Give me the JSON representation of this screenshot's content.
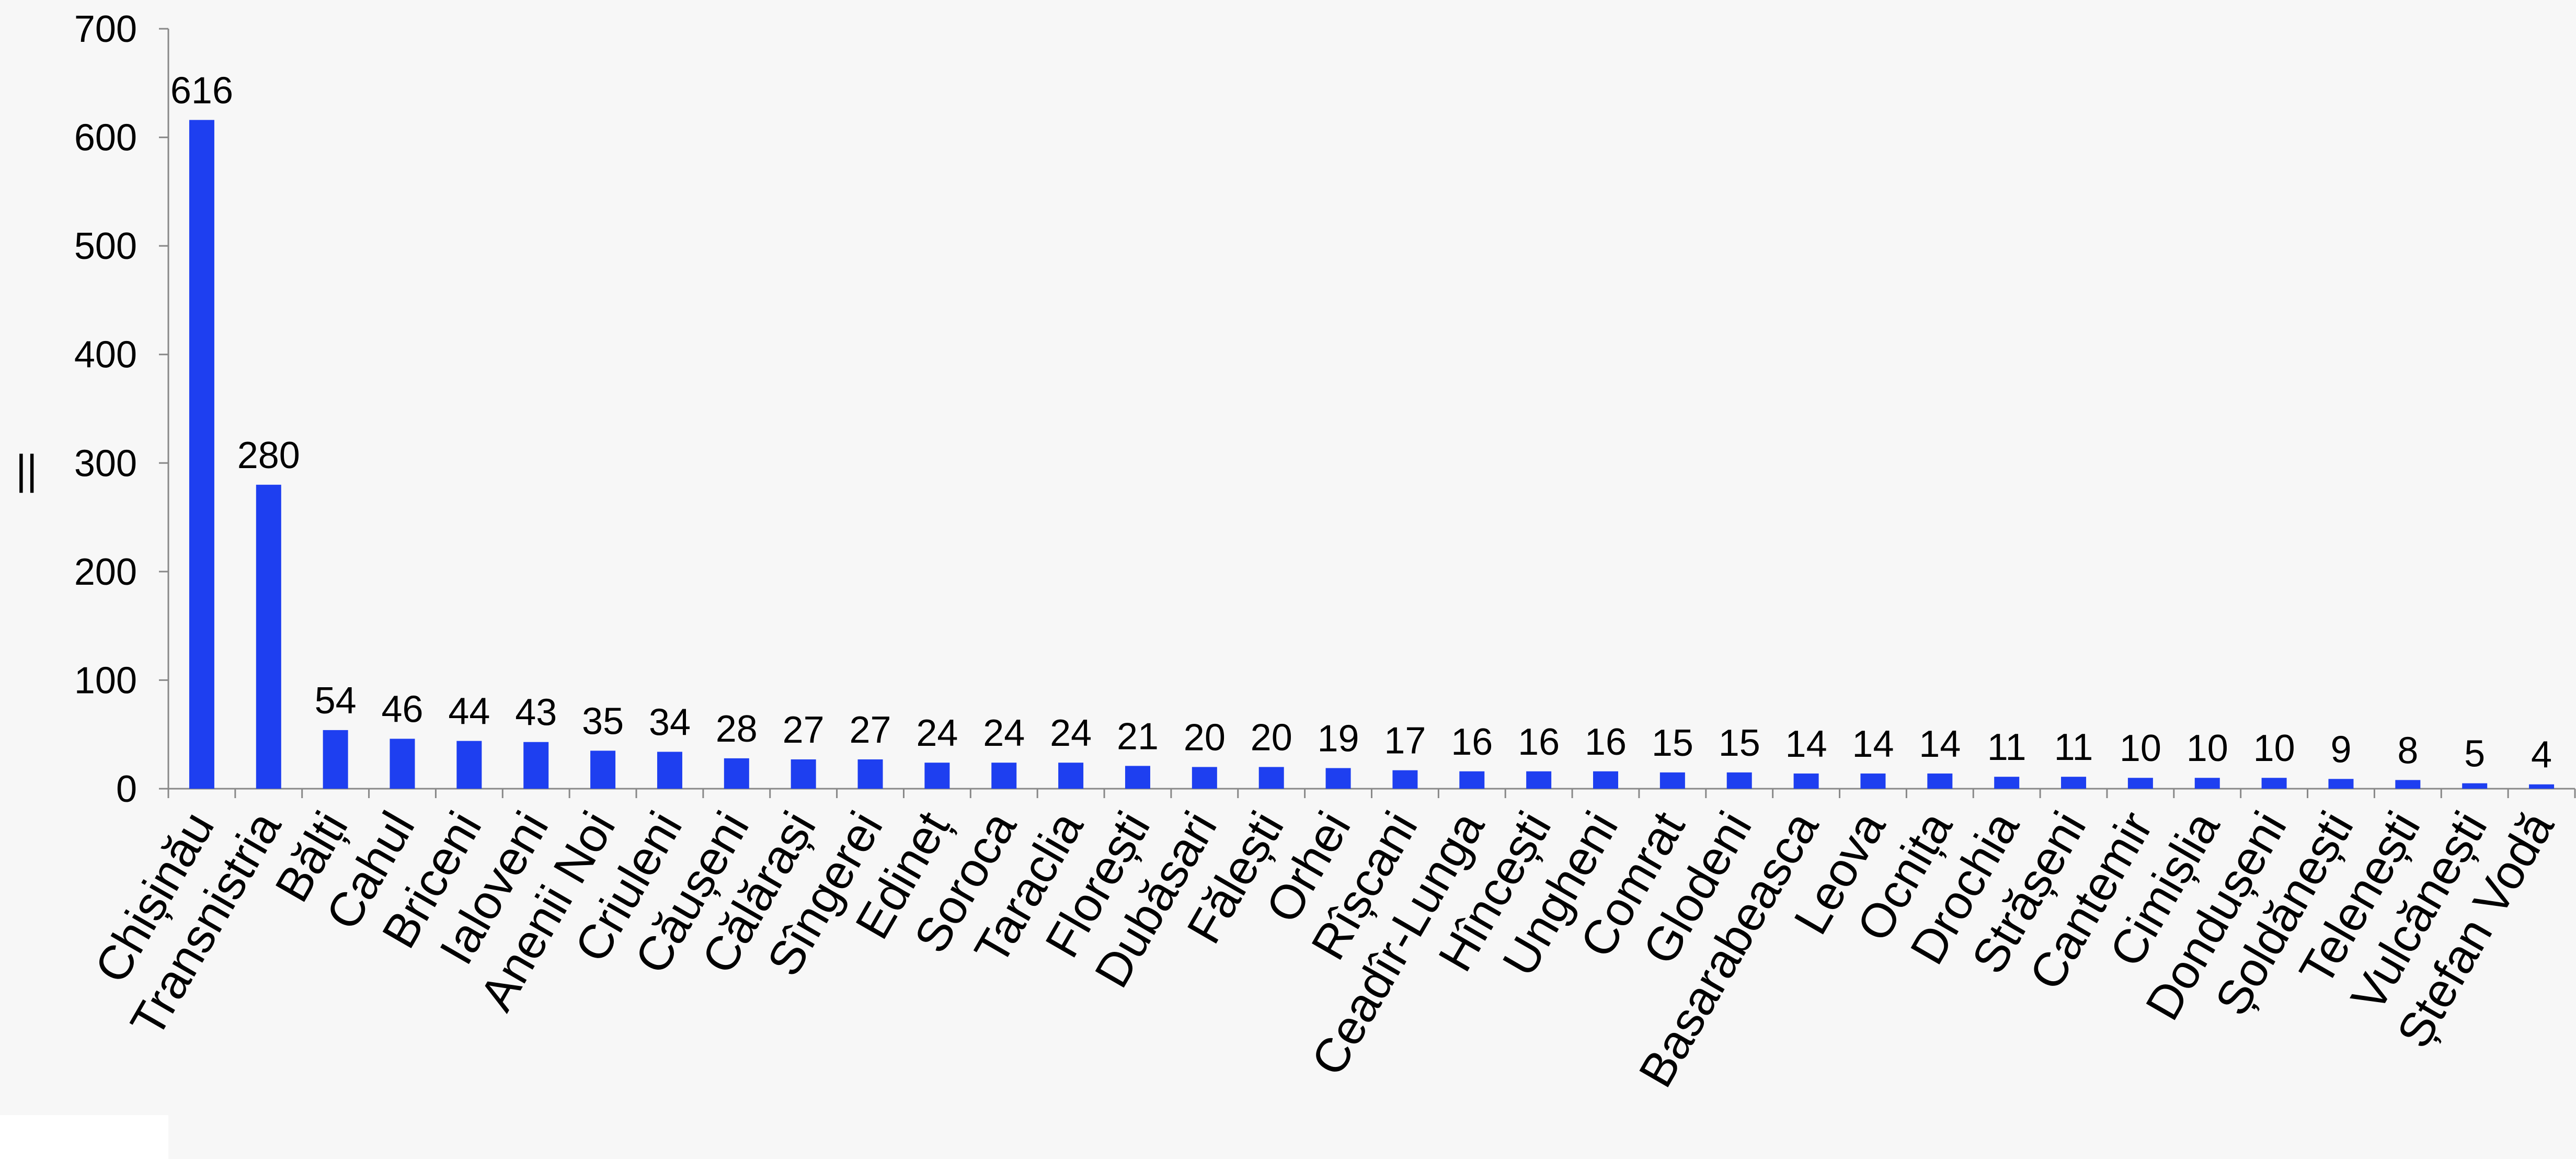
{
  "chart_data": {
    "type": "bar",
    "title": "",
    "xlabel": "",
    "ylabel": "||",
    "ylim": [
      0,
      700
    ],
    "yticks": [
      0,
      100,
      200,
      300,
      400,
      500,
      600,
      700
    ],
    "grid": false,
    "legend": "none",
    "bar_color": "#1e3ff0",
    "categories": [
      "Chișinău",
      "Transnistria",
      "Bălți",
      "Cahul",
      "Briceni",
      "Ialoveni",
      "Anenii Noi",
      "Criuleni",
      "Căușeni",
      "Călărași",
      "Sîngerei",
      "Edineț",
      "Soroca",
      "Taraclia",
      "Florești",
      "Dubăsari",
      "Fălești",
      "Orhei",
      "Rîșcani",
      "Ceadîr-Lunga",
      "Hîncești",
      "Ungheni",
      "Comrat",
      "Glodeni",
      "Basarabeasca",
      "Leova",
      "Ocnița",
      "Drochia",
      "Strășeni",
      "Cantemir",
      "Cimișlia",
      "Dondușeni",
      "Șoldănești",
      "Telenești",
      "Vulcănești",
      "Ștefan Vodă"
    ],
    "values": [
      616,
      280,
      54,
      46,
      44,
      43,
      35,
      34,
      28,
      27,
      27,
      24,
      24,
      24,
      21,
      20,
      20,
      19,
      17,
      16,
      16,
      16,
      15,
      15,
      14,
      14,
      14,
      11,
      11,
      10,
      10,
      10,
      9,
      8,
      5,
      4
    ]
  }
}
